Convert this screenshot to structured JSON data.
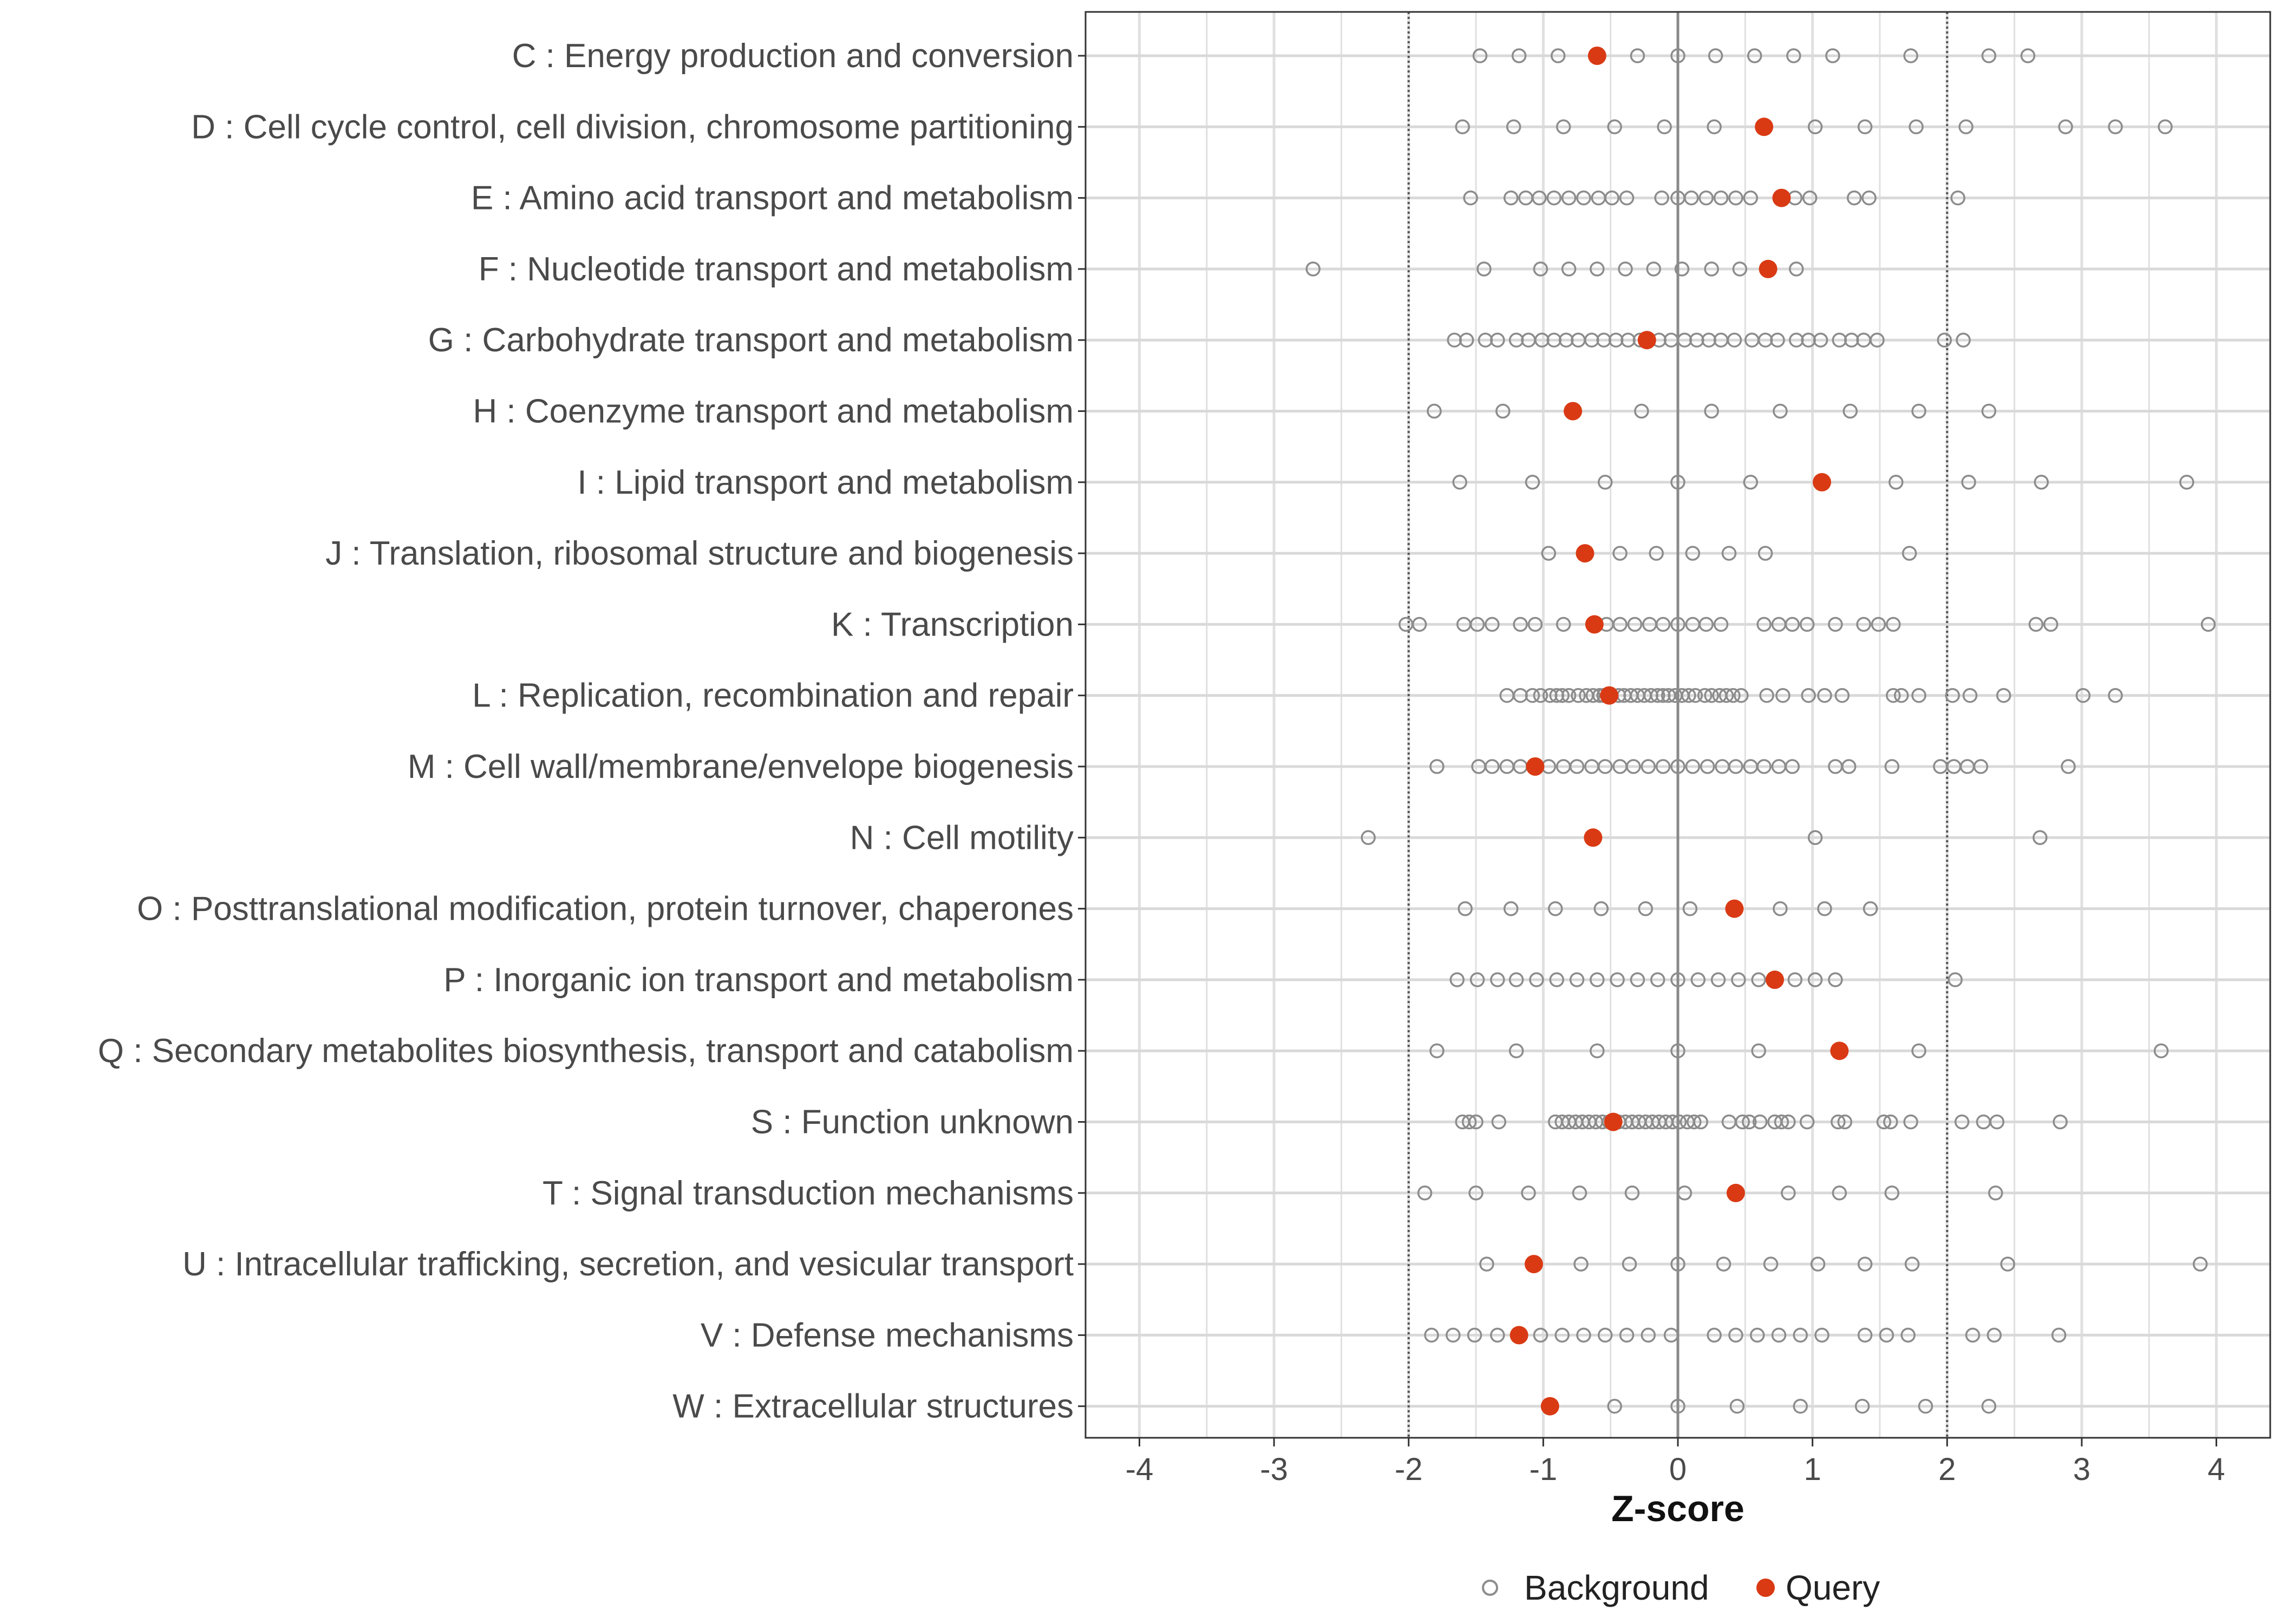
{
  "chart_data": {
    "type": "scatter",
    "xlabel": "Z-score",
    "xlim": [
      -4.4,
      4.4
    ],
    "xticks": [
      -4,
      -3,
      -2,
      -1,
      0,
      1,
      2,
      3,
      4
    ],
    "xtick_labels": [
      "-4",
      "-3",
      "-2",
      "-1",
      "0",
      "1",
      "2",
      "3",
      "4"
    ],
    "reference_lines": [
      {
        "x": -2,
        "style": "dotted"
      },
      {
        "x": 0,
        "style": "solid"
      },
      {
        "x": 2,
        "style": "dotted"
      }
    ],
    "legend": {
      "placement": "bottom",
      "entries": [
        {
          "name": "Background",
          "marker": "open-circle",
          "color": "#8c8c8c"
        },
        {
          "name": "Query",
          "marker": "filled-circle",
          "color": "#d93a14"
        }
      ]
    },
    "categories": [
      {
        "label": "C : Energy production and conversion",
        "query": -0.6,
        "background": [
          -1.47,
          -1.18,
          -0.89,
          -0.3,
          0,
          0.28,
          0.57,
          0.86,
          1.15,
          1.73,
          2.31,
          2.6
        ]
      },
      {
        "label": "D : Cell cycle control, cell division, chromosome partitioning",
        "query": 0.64,
        "background": [
          -1.6,
          -1.22,
          -0.85,
          -0.47,
          -0.1,
          0.27,
          1.02,
          1.39,
          1.77,
          2.14,
          2.88,
          3.25,
          3.62
        ]
      },
      {
        "label": "E : Amino acid transport and metabolism",
        "query": 0.77,
        "background": [
          -1.54,
          -1.24,
          -1.13,
          -1.03,
          -0.92,
          -0.81,
          -0.7,
          -0.59,
          -0.49,
          -0.38,
          -0.12,
          0,
          0.1,
          0.21,
          0.32,
          0.43,
          0.54,
          0.87,
          0.98,
          1.31,
          1.42,
          2.08
        ]
      },
      {
        "label": "F : Nucleotide transport and metabolism",
        "query": 0.67,
        "background": [
          -2.71,
          -1.44,
          -1.02,
          -0.81,
          -0.6,
          -0.39,
          -0.18,
          0.03,
          0.25,
          0.46,
          0.88
        ]
      },
      {
        "label": "G : Carbohydrate transport and metabolism",
        "query": -0.23,
        "background": [
          -1.66,
          -1.57,
          -1.43,
          -1.34,
          -1.2,
          -1.11,
          -1.01,
          -0.92,
          -0.83,
          -0.74,
          -0.64,
          -0.55,
          -0.46,
          -0.37,
          -0.28,
          -0.14,
          -0.05,
          0.05,
          0.14,
          0.23,
          0.32,
          0.42,
          0.55,
          0.65,
          0.74,
          0.88,
          0.97,
          1.06,
          1.2,
          1.29,
          1.38,
          1.48,
          1.98,
          2.12
        ]
      },
      {
        "label": "H : Coenzyme transport and metabolism",
        "query": -0.78,
        "background": [
          -1.81,
          -1.3,
          -0.27,
          0.25,
          0.76,
          1.28,
          1.79,
          2.31
        ]
      },
      {
        "label": "I : Lipid transport and metabolism",
        "query": 1.07,
        "background": [
          -1.62,
          -1.08,
          -0.54,
          0,
          0.54,
          1.62,
          2.16,
          2.7,
          3.78
        ]
      },
      {
        "label": "J : Translation, ribosomal structure and biogenesis",
        "query": -0.69,
        "background": [
          -0.96,
          -0.43,
          -0.16,
          0.11,
          0.38,
          0.65,
          1.72
        ]
      },
      {
        "label": "K : Transcription",
        "query": -0.62,
        "background": [
          -2.02,
          -1.92,
          -1.59,
          -1.49,
          -1.38,
          -1.17,
          -1.06,
          -0.85,
          -0.53,
          -0.43,
          -0.32,
          -0.21,
          -0.11,
          0,
          0.11,
          0.21,
          0.32,
          0.64,
          0.75,
          0.85,
          0.96,
          1.17,
          1.38,
          1.49,
          1.6,
          2.66,
          2.77,
          3.94
        ]
      },
      {
        "label": "L : Replication, recombination and repair",
        "query": -0.51,
        "background": [
          -1.27,
          -1.17,
          -1.08,
          -1.02,
          -0.95,
          -0.9,
          -0.86,
          -0.81,
          -0.74,
          -0.68,
          -0.63,
          -0.58,
          -0.55,
          -0.44,
          -0.4,
          -0.35,
          -0.3,
          -0.25,
          -0.2,
          -0.15,
          -0.11,
          -0.07,
          -0.02,
          0.03,
          0.08,
          0.13,
          0.2,
          0.25,
          0.31,
          0.36,
          0.41,
          0.47,
          0.66,
          0.78,
          0.97,
          1.09,
          1.22,
          1.6,
          1.66,
          1.79,
          2.04,
          2.17,
          2.42,
          3.01,
          3.25
        ]
      },
      {
        "label": "M : Cell wall/membrane/envelope biogenesis",
        "query": -1.06,
        "background": [
          -1.79,
          -1.48,
          -1.38,
          -1.27,
          -1.17,
          -0.96,
          -0.85,
          -0.75,
          -0.64,
          -0.54,
          -0.43,
          -0.33,
          -0.22,
          -0.11,
          0,
          0.11,
          0.22,
          0.33,
          0.43,
          0.54,
          0.64,
          0.75,
          0.85,
          1.17,
          1.27,
          1.59,
          1.95,
          2.05,
          2.15,
          2.25,
          2.9
        ]
      },
      {
        "label": "N : Cell motility",
        "query": -0.63,
        "background": [
          -2.3,
          1.02,
          2.69
        ]
      },
      {
        "label": "O : Posttranslational modification, protein turnover, chaperones",
        "query": 0.42,
        "background": [
          -1.58,
          -1.24,
          -0.91,
          -0.57,
          -0.24,
          0.09,
          0.76,
          1.09,
          1.43
        ]
      },
      {
        "label": "P : Inorganic ion transport and metabolism",
        "query": 0.72,
        "background": [
          -1.64,
          -1.49,
          -1.34,
          -1.2,
          -1.05,
          -0.9,
          -0.75,
          -0.6,
          -0.45,
          -0.3,
          -0.15,
          0,
          0.15,
          0.3,
          0.45,
          0.6,
          0.87,
          1.02,
          1.17,
          2.06
        ]
      },
      {
        "label": "Q : Secondary metabolites biosynthesis, transport and catabolism",
        "query": 1.2,
        "background": [
          -1.79,
          -1.2,
          -0.6,
          0,
          0.6,
          1.79,
          3.59
        ]
      },
      {
        "label": "S : Function unknown",
        "query": -0.48,
        "background": [
          -1.6,
          -1.55,
          -1.5,
          -1.33,
          -0.91,
          -0.86,
          -0.81,
          -0.76,
          -0.71,
          -0.66,
          -0.61,
          -0.56,
          -0.51,
          -0.44,
          -0.39,
          -0.34,
          -0.29,
          -0.24,
          -0.19,
          -0.14,
          -0.09,
          -0.04,
          0.01,
          0.07,
          0.12,
          0.17,
          0.38,
          0.48,
          0.53,
          0.61,
          0.72,
          0.77,
          0.82,
          0.96,
          1.19,
          1.24,
          1.53,
          1.58,
          1.73,
          2.11,
          2.27,
          2.37,
          2.84
        ]
      },
      {
        "label": "T : Signal transduction mechanisms",
        "query": 0.43,
        "background": [
          -1.88,
          -1.5,
          -1.11,
          -0.73,
          -0.34,
          0.05,
          0.82,
          1.2,
          1.59,
          2.36
        ]
      },
      {
        "label": "U : Intracellular trafficking, secretion, and vesicular transport",
        "query": -1.07,
        "background": [
          -1.42,
          -0.72,
          -0.36,
          0,
          0.34,
          0.69,
          1.04,
          1.39,
          1.74,
          2.45,
          3.88
        ]
      },
      {
        "label": "V : Defense mechanisms",
        "query": -1.18,
        "background": [
          -1.83,
          -1.67,
          -1.51,
          -1.34,
          -1.02,
          -0.86,
          -0.7,
          -0.54,
          -0.38,
          -0.22,
          -0.05,
          0.27,
          0.43,
          0.59,
          0.75,
          0.91,
          1.07,
          1.39,
          1.55,
          1.71,
          2.19,
          2.35,
          2.83
        ]
      },
      {
        "label": "W : Extracellular structures",
        "query": -0.95,
        "background": [
          -0.47,
          0,
          0.44,
          0.91,
          1.37,
          1.84,
          2.31
        ]
      }
    ]
  }
}
